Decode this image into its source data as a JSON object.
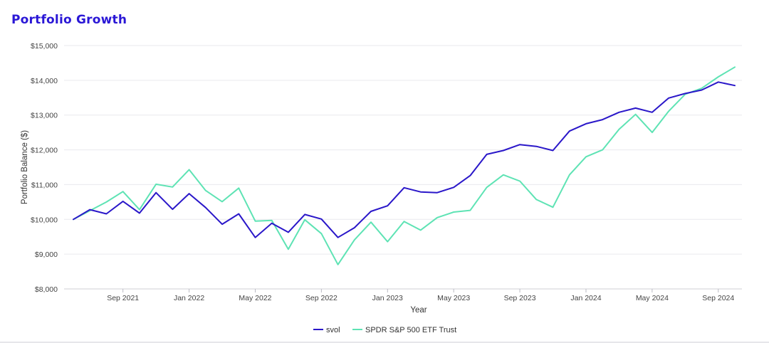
{
  "title": "Portfolio Growth",
  "chart_data": {
    "type": "line",
    "title": "Portfolio Growth",
    "xlabel": "Year",
    "ylabel": "Portfolio Balance ($)",
    "ylim": [
      8000,
      15000
    ],
    "yticks": [
      8000,
      9000,
      10000,
      11000,
      12000,
      13000,
      14000,
      15000
    ],
    "ytick_labels": [
      "$8,000",
      "$9,000",
      "$10,000",
      "$11,000",
      "$12,000",
      "$13,000",
      "$14,000",
      "$15,000"
    ],
    "xticks": [
      {
        "index": 3,
        "label": "Sep 2021"
      },
      {
        "index": 7,
        "label": "Jan 2022"
      },
      {
        "index": 11,
        "label": "May 2022"
      },
      {
        "index": 15,
        "label": "Sep 2022"
      },
      {
        "index": 19,
        "label": "Jan 2023"
      },
      {
        "index": 23,
        "label": "May 2023"
      },
      {
        "index": 27,
        "label": "Sep 2023"
      },
      {
        "index": 31,
        "label": "Jan 2024"
      },
      {
        "index": 35,
        "label": "May 2024"
      },
      {
        "index": 39,
        "label": "Sep 2024"
      }
    ],
    "x": [
      "Jun 2021",
      "Jul 2021",
      "Aug 2021",
      "Sep 2021",
      "Oct 2021",
      "Nov 2021",
      "Dec 2021",
      "Jan 2022",
      "Feb 2022",
      "Mar 2022",
      "Apr 2022",
      "May 2022",
      "Jun 2022",
      "Jul 2022",
      "Aug 2022",
      "Sep 2022",
      "Oct 2022",
      "Nov 2022",
      "Dec 2022",
      "Jan 2023",
      "Feb 2023",
      "Mar 2023",
      "Apr 2023",
      "May 2023",
      "Jun 2023",
      "Jul 2023",
      "Aug 2023",
      "Sep 2023",
      "Oct 2023",
      "Nov 2023",
      "Dec 2023",
      "Jan 2024",
      "Feb 2024",
      "Mar 2024",
      "Apr 2024",
      "May 2024",
      "Jun 2024",
      "Jul 2024",
      "Aug 2024",
      "Sep 2024",
      "Oct 2024"
    ],
    "grid": true,
    "legend_position": "bottom",
    "series": [
      {
        "name": "svol",
        "color": "#2a17c9",
        "values": [
          10000,
          10280,
          10160,
          10520,
          10180,
          10770,
          10290,
          10740,
          10340,
          9860,
          10160,
          9480,
          9890,
          9630,
          10140,
          10010,
          9480,
          9760,
          10230,
          10390,
          10910,
          10790,
          10770,
          10920,
          11260,
          11870,
          11980,
          12150,
          12100,
          11980,
          12540,
          12750,
          12870,
          13080,
          13200,
          13080,
          13490,
          13620,
          13720,
          13950,
          13850
        ]
      },
      {
        "name": "SPDR S&P 500 ETF Trust",
        "color": "#5ee3b4",
        "values": [
          10000,
          10250,
          10500,
          10800,
          10280,
          11010,
          10930,
          11430,
          10830,
          10510,
          10900,
          9950,
          9970,
          9140,
          9990,
          9590,
          8700,
          9410,
          9920,
          9360,
          9940,
          9690,
          10050,
          10210,
          10260,
          10920,
          11280,
          11100,
          10570,
          10350,
          11280,
          11800,
          12000,
          12590,
          13020,
          12500,
          13110,
          13600,
          13770,
          14100,
          14380
        ]
      }
    ]
  }
}
